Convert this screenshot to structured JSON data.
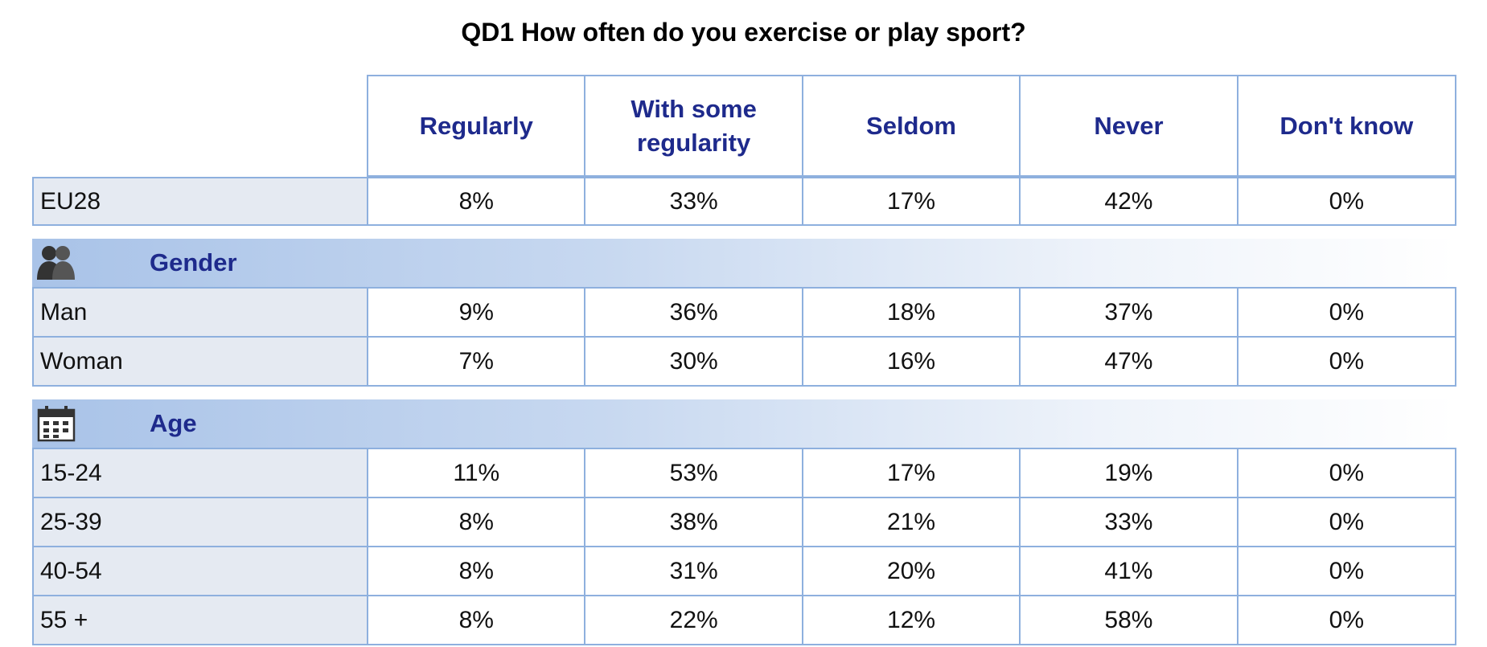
{
  "title": "QD1 How often do you exercise or play sport?",
  "chart_data": {
    "type": "table",
    "title": "QD1 How often do you exercise or play sport?",
    "columns": [
      "Regularly",
      "With some regularity",
      "Seldom",
      "Never",
      "Don't know"
    ],
    "header_lines": [
      [
        "Regularly"
      ],
      [
        "With some",
        "regularity"
      ],
      [
        "Seldom"
      ],
      [
        "Never"
      ],
      [
        "Don't know"
      ]
    ],
    "total": {
      "label": "EU28",
      "values": [
        "8%",
        "33%",
        "17%",
        "42%",
        "0%"
      ]
    },
    "sections": [
      {
        "label": "Gender",
        "icon": "people-icon",
        "rows": [
          {
            "label": "Man",
            "values": [
              "9%",
              "36%",
              "18%",
              "37%",
              "0%"
            ]
          },
          {
            "label": "Woman",
            "values": [
              "7%",
              "30%",
              "16%",
              "47%",
              "0%"
            ]
          }
        ]
      },
      {
        "label": "Age",
        "icon": "calendar-icon",
        "rows": [
          {
            "label": "15-24",
            "values": [
              "11%",
              "53%",
              "17%",
              "19%",
              "0%"
            ]
          },
          {
            "label": "25-39",
            "values": [
              "8%",
              "38%",
              "21%",
              "33%",
              "0%"
            ]
          },
          {
            "label": "40-54",
            "values": [
              "8%",
              "31%",
              "20%",
              "41%",
              "0%"
            ]
          },
          {
            "label": "55 +",
            "values": [
              "8%",
              "22%",
              "12%",
              "58%",
              "0%"
            ]
          }
        ]
      }
    ]
  },
  "colors": {
    "header_text": "#1e2a8c",
    "border": "#8eb0de",
    "label_bg": "#e5eaf2",
    "section_gradient_start": "#a9c3e8"
  }
}
